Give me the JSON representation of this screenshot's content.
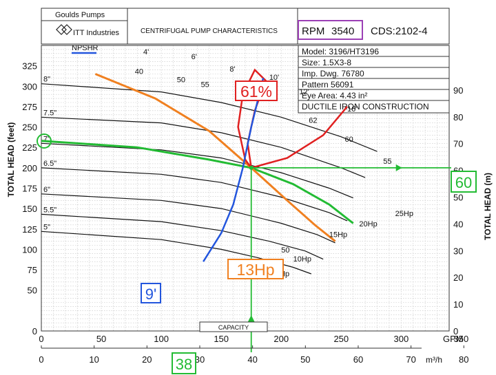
{
  "header": {
    "brand": "Goulds Pumps",
    "company": "ITT Industries",
    "title": "CENTRIFUGAL PUMP CHARACTERISTICS",
    "rpm_label": "RPM",
    "rpm_value": "3540",
    "cds": "CDS:2102-4"
  },
  "info": [
    "Model: 3196/HT3196",
    "Size: 1.5X3-8",
    "Imp. Dwg. 76780",
    "Pattern 56091",
    "Eye Area: 4.43 in²",
    "DUCTILE IRON CONSTRUCTION"
  ],
  "colors": {
    "npsh": "#2255dd",
    "efficiency": "#e02020",
    "power": "#f08020",
    "system": "#22bb33",
    "rpm_box": "#9b3fb5",
    "grid": "#c4c4c4"
  },
  "chart_data": {
    "type": "line",
    "xlabel": "GPM",
    "x2label": "m³/h",
    "ylabel": "TOTAL HEAD (feet)",
    "y2label": "TOTAL HEAD (m)",
    "xlim": [
      0,
      340
    ],
    "ylim": [
      0,
      350
    ],
    "x_ticks": [
      0,
      50,
      100,
      150,
      200,
      250,
      300,
      350
    ],
    "x2_ticks": [
      0,
      10,
      20,
      30,
      40,
      50,
      60,
      70,
      80,
      90
    ],
    "y_ticks": [
      0,
      50,
      75,
      100,
      125,
      150,
      175,
      200,
      225,
      250,
      275,
      300,
      325
    ],
    "y2_ticks": [
      0,
      10,
      20,
      30,
      40,
      50,
      60,
      70,
      80,
      90
    ],
    "impeller_curves": [
      {
        "name": "8\"",
        "points": [
          [
            0,
            303
          ],
          [
            100,
            293
          ],
          [
            150,
            280
          ],
          [
            200,
            262
          ],
          [
            250,
            238
          ],
          [
            280,
            220
          ]
        ]
      },
      {
        "name": "7.5\"",
        "points": [
          [
            0,
            262
          ],
          [
            100,
            255
          ],
          [
            150,
            243
          ],
          [
            200,
            225
          ],
          [
            250,
            200
          ],
          [
            270,
            188
          ]
        ]
      },
      {
        "name": "7\"",
        "points": [
          [
            0,
            230
          ],
          [
            100,
            222
          ],
          [
            150,
            212
          ],
          [
            200,
            194
          ],
          [
            240,
            175
          ],
          [
            260,
            163
          ]
        ]
      },
      {
        "name": "6.5\"",
        "points": [
          [
            0,
            200
          ],
          [
            100,
            192
          ],
          [
            150,
            182
          ],
          [
            200,
            164
          ],
          [
            240,
            145
          ],
          [
            255,
            135
          ]
        ]
      },
      {
        "name": "6\"",
        "points": [
          [
            0,
            168
          ],
          [
            100,
            160
          ],
          [
            150,
            150
          ],
          [
            200,
            132
          ],
          [
            230,
            118
          ],
          [
            245,
            108
          ]
        ]
      },
      {
        "name": "5.5\"",
        "points": [
          [
            0,
            143
          ],
          [
            100,
            134
          ],
          [
            150,
            123
          ],
          [
            190,
            110
          ],
          [
            220,
            98
          ],
          [
            235,
            88
          ]
        ]
      },
      {
        "name": "5\"",
        "points": [
          [
            0,
            122
          ],
          [
            100,
            112
          ],
          [
            150,
            100
          ],
          [
            180,
            90
          ],
          [
            210,
            78
          ],
          [
            225,
            70
          ]
        ]
      }
    ],
    "npsh_curve": {
      "label": "NPSHR",
      "points": [
        [
          135,
          85
        ],
        [
          150,
          120
        ],
        [
          160,
          155
        ],
        [
          168,
          200
        ],
        [
          175,
          250
        ],
        [
          185,
          310
        ]
      ]
    },
    "npsh_labels": [
      {
        "text": "4'",
        "x": 85,
        "y": 339
      },
      {
        "text": "6'",
        "x": 125,
        "y": 333
      },
      {
        "text": "8'",
        "x": 157,
        "y": 318
      },
      {
        "text": "10'",
        "x": 190,
        "y": 308
      },
      {
        "text": "12'",
        "x": 215,
        "y": 290
      },
      {
        "text": "16'",
        "x": 255,
        "y": 269
      }
    ],
    "efficiency_labels": [
      {
        "text": "40",
        "x": 78,
        "y": 315
      },
      {
        "text": "50",
        "x": 113,
        "y": 305
      },
      {
        "text": "55",
        "x": 133,
        "y": 299
      },
      {
        "text": "60",
        "x": 168,
        "y": 290
      },
      {
        "text": "62",
        "x": 223,
        "y": 255
      },
      {
        "text": "60",
        "x": 253,
        "y": 232
      },
      {
        "text": "55",
        "x": 285,
        "y": 205
      },
      {
        "text": "50",
        "x": 200,
        "y": 96
      }
    ],
    "power_labels": [
      {
        "text": "25Hp",
        "x": 295,
        "y": 141
      },
      {
        "text": "20Hp",
        "x": 265,
        "y": 128
      },
      {
        "text": "15Hp",
        "x": 240,
        "y": 115
      },
      {
        "text": "10Hp",
        "x": 210,
        "y": 85
      },
      {
        "text": "7.5Hp",
        "x": 190,
        "y": 67
      }
    ],
    "efficiency_curve": {
      "points": [
        [
          175,
          200
        ],
        [
          172,
          230
        ],
        [
          178,
          270
        ],
        [
          187,
          307
        ],
        [
          178,
          320
        ],
        [
          168,
          290
        ],
        [
          164,
          250
        ],
        [
          170,
          210
        ],
        [
          175,
          200
        ],
        [
          205,
          212
        ],
        [
          235,
          240
        ],
        [
          255,
          275
        ]
      ]
    },
    "power_curve": {
      "points": [
        [
          45,
          315
        ],
        [
          95,
          285
        ],
        [
          140,
          245
        ],
        [
          175,
          200
        ],
        [
          205,
          160
        ],
        [
          228,
          130
        ],
        [
          245,
          110
        ]
      ]
    },
    "system_curve": {
      "points": [
        [
          0,
          233
        ],
        [
          80,
          225
        ],
        [
          140,
          210
        ],
        [
          175,
          200
        ],
        [
          210,
          180
        ],
        [
          240,
          155
        ],
        [
          260,
          132
        ]
      ]
    },
    "operating_point": {
      "x": 175,
      "y": 200
    },
    "callouts": [
      {
        "text": "61%",
        "color": "#e02020"
      },
      {
        "text": "13Hp",
        "color": "#f08020"
      },
      {
        "text": "9'",
        "color": "#2255dd"
      },
      {
        "text": "60",
        "color": "#22bb33"
      },
      {
        "text": "38",
        "color": "#22bb33"
      },
      {
        "text": "7\"",
        "color": "#22bb33"
      }
    ],
    "capacity_label": "CAPACITY"
  }
}
